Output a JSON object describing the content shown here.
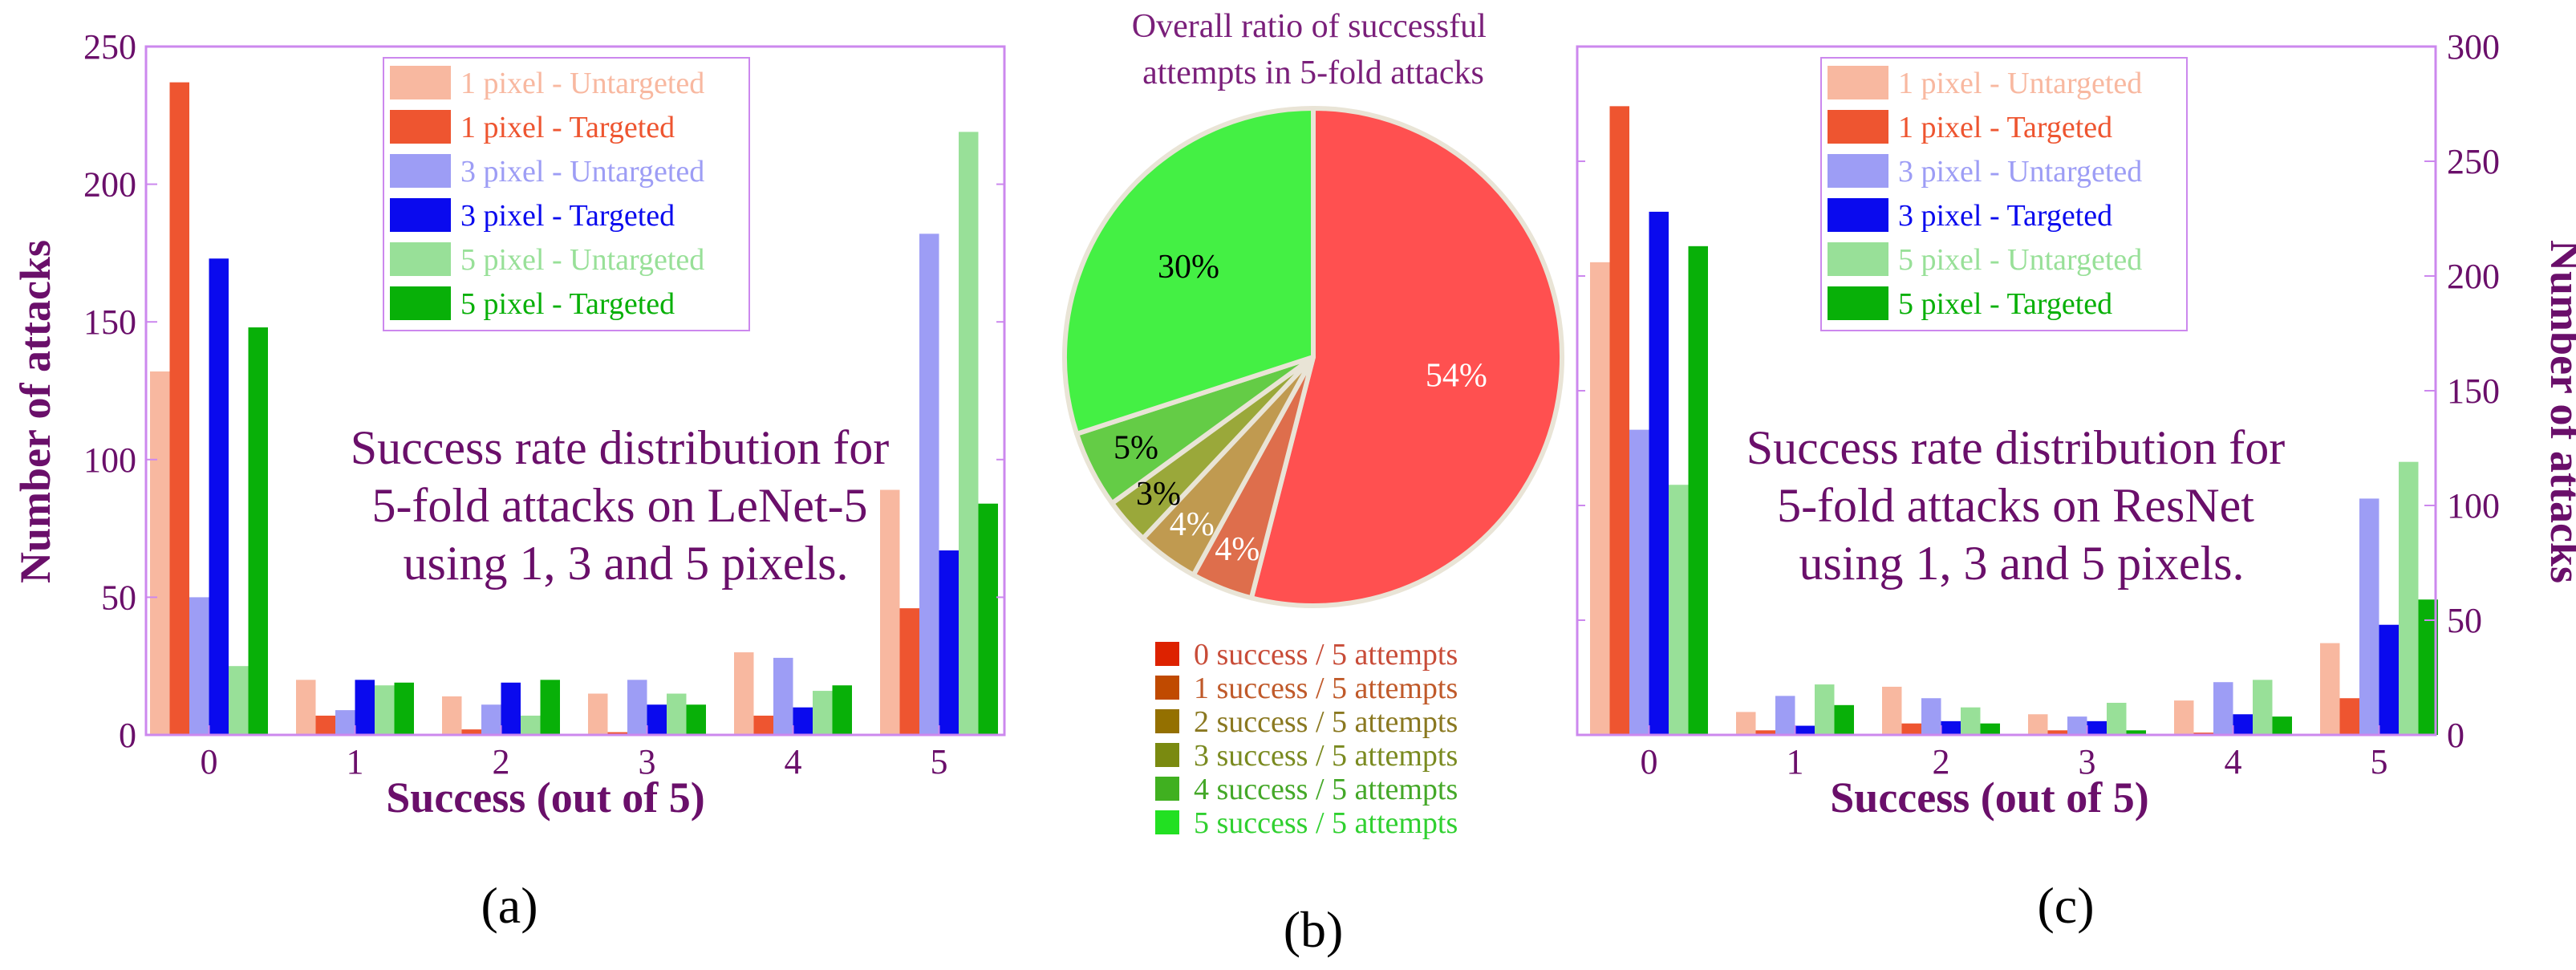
{
  "colors": {
    "frame": "#cc88ee",
    "text_purple": "#6a0f6a",
    "series": [
      "#f8b8a0",
      "#ee5530",
      "#9d9df5",
      "#0a0aee",
      "#98e098",
      "#08b008"
    ],
    "pie": [
      "#ff5050",
      "#de6e4c",
      "#c09a50",
      "#9aa83a",
      "#64cc46",
      "#44f044"
    ],
    "pie_legend_swatch": [
      "#dd2200",
      "#c04a00",
      "#947000",
      "#7a8a10",
      "#40b020",
      "#22e022"
    ],
    "pie_legend_text": [
      "#c84c38",
      "#c05a2a",
      "#8a7820",
      "#7a8a20",
      "#44a828",
      "#30d030"
    ]
  },
  "series_names": [
    "1 pixel - Untargeted",
    "1 pixel - Targeted",
    "3 pixel - Untargeted",
    "3 pixel - Targeted",
    "5 pixel - Untargeted",
    "5 pixel - Targeted"
  ],
  "chart_data": [
    {
      "id": "a",
      "type": "bar",
      "title": "Success rate distribution for 5-fold attacks on LeNet-5 using 1, 3 and 5 pixels.",
      "title_lines": [
        "Success rate distribution for",
        "5-fold attacks on LeNet-5",
        "using 1, 3 and 5 pixels."
      ],
      "xlabel": "Success (out of 5)",
      "ylabel": "Number of attacks",
      "categories": [
        "0",
        "1",
        "2",
        "3",
        "4",
        "5"
      ],
      "ylim": [
        0,
        250
      ],
      "yticks": [
        0,
        50,
        100,
        150,
        200,
        250
      ],
      "yaxis_side": "left",
      "legend_position": "top-center",
      "series": [
        {
          "name": "1 pixel - Untargeted",
          "values": [
            132,
            20,
            14,
            15,
            30,
            89
          ]
        },
        {
          "name": "1 pixel - Targeted",
          "values": [
            237,
            7,
            2,
            1,
            7,
            46
          ]
        },
        {
          "name": "3 pixel - Untargeted",
          "values": [
            50,
            9,
            11,
            20,
            28,
            182
          ]
        },
        {
          "name": "3 pixel - Targeted",
          "values": [
            173,
            20,
            19,
            11,
            10,
            67
          ]
        },
        {
          "name": "5 pixel - Untargeted",
          "values": [
            25,
            18,
            7,
            15,
            16,
            219
          ]
        },
        {
          "name": "5 pixel - Targeted",
          "values": [
            148,
            19,
            20,
            11,
            18,
            84
          ]
        }
      ],
      "caption": "(a)"
    },
    {
      "id": "b",
      "type": "pie",
      "title": "Overall ratio of successful attempts in 5-fold attacks",
      "title_lines": [
        "Overall ratio of successful",
        "attempts in 5-fold attacks"
      ],
      "categories": [
        "0 success / 5 attempts",
        "1 success / 5 attempts",
        "2 success / 5 attempts",
        "3 success / 5 attempts",
        "4 success / 5 attempts",
        "5 success / 5 attempts"
      ],
      "values": [
        54,
        4,
        4,
        3,
        5,
        30
      ],
      "labels": [
        "54%",
        "4%",
        "4%",
        "3%",
        "5%",
        "30%"
      ],
      "caption": "(b)"
    },
    {
      "id": "c",
      "type": "bar",
      "title": "Success rate distribution for 5-fold attacks on ResNet using 1, 3 and 5 pixels.",
      "title_lines": [
        "Success rate distribution for",
        "5-fold attacks on ResNet",
        "using 1, 3 and 5 pixels."
      ],
      "xlabel": "Success (out of 5)",
      "ylabel": "Number of attacks",
      "categories": [
        "0",
        "1",
        "2",
        "3",
        "4",
        "5"
      ],
      "ylim": [
        0,
        300
      ],
      "yticks": [
        0,
        50,
        100,
        150,
        200,
        250,
        300
      ],
      "yaxis_side": "right",
      "legend_position": "top-center",
      "series": [
        {
          "name": "1 pixel - Untargeted",
          "values": [
            206,
            10,
            21,
            9,
            15,
            40
          ]
        },
        {
          "name": "1 pixel - Targeted",
          "values": [
            274,
            2,
            5,
            2,
            1,
            16
          ]
        },
        {
          "name": "3 pixel - Untargeted",
          "values": [
            133,
            17,
            16,
            8,
            23,
            103
          ]
        },
        {
          "name": "3 pixel - Targeted",
          "values": [
            228,
            4,
            6,
            6,
            9,
            48
          ]
        },
        {
          "name": "5 pixel - Untargeted",
          "values": [
            109,
            22,
            12,
            14,
            24,
            119
          ]
        },
        {
          "name": "5 pixel - Targeted",
          "values": [
            213,
            13,
            5,
            2,
            8,
            59
          ]
        }
      ],
      "caption": "(c)"
    }
  ]
}
